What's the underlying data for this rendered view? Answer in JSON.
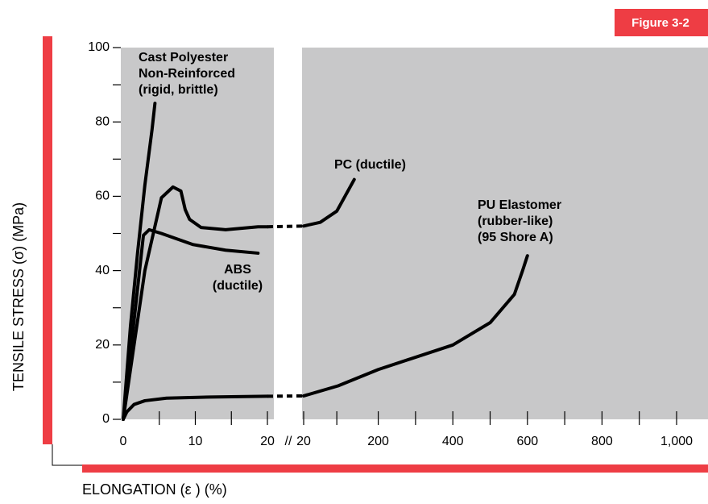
{
  "chart_data": {
    "type": "line",
    "figure_label": "Figure 3-2",
    "ylabel": "TENSILE STRESS (σ) (MPa)",
    "xlabel": "ELONGATION (ε ) (%)",
    "break_label": "//",
    "ylim": [
      0,
      100
    ],
    "yticks": [
      0,
      20,
      40,
      60,
      80,
      100
    ],
    "yminor": [
      10,
      30,
      50,
      70,
      90
    ],
    "panels": [
      {
        "xlim": [
          0,
          20
        ],
        "xticks": [
          0,
          10,
          20
        ],
        "xminor": [
          5,
          15
        ]
      },
      {
        "xticks": [
          20,
          200,
          400,
          600,
          800,
          {
            "value": 1000,
            "label": "1,000"
          }
        ],
        "xminor": [
          100,
          300,
          500,
          700,
          900
        ]
      }
    ],
    "color": "#000000",
    "series": [
      {
        "label": [
          "Cast Polyester",
          "Non-Reinforced",
          "(rigid, brittle)"
        ],
        "parts": [
          {
            "x": [
              0,
              1,
              2,
              3,
              4,
              4.4
            ],
            "values": [
              0,
              25,
              45,
              63,
              78,
              85
            ]
          }
        ]
      },
      {
        "label": [
          "PC (ductile)"
        ],
        "parts": [
          {
            "x": [
              0,
              3,
              5.3,
              6.9,
              8,
              8.6,
              9.2,
              10.8,
              14.2,
              18.7,
              20
            ],
            "values": [
              0,
              40,
              59.6,
              62.5,
              61.4,
              56.4,
              53.8,
              51.6,
              51,
              51.8,
              51.8
            ]
          },
          {
            "x": [
              20,
              60,
              100,
              142
            ],
            "values": [
              52,
              53,
              56,
              64.5
            ]
          }
        ]
      },
      {
        "label": [
          "ABS",
          "(ductile)"
        ],
        "parts": [
          {
            "x": [
              0,
              2.8,
              3.6,
              5.3,
              9.7,
              14.2,
              18.7
            ],
            "values": [
              0,
              49.5,
              51,
              50,
              47,
              45.5,
              44.7
            ]
          }
        ]
      },
      {
        "label": [
          "PU Elastomer",
          "(rubber-like)",
          "(95 Shore A)"
        ],
        "parts": [
          {
            "x": [
              0,
              0.5,
              1.5,
              3,
              6,
              12,
              20
            ],
            "values": [
              0,
              2,
              4,
              5,
              5.7,
              6,
              6.2
            ]
          },
          {
            "x": [
              20,
              103,
              200,
              400,
              500,
              565,
              587,
              600
            ],
            "values": [
              6.3,
              9,
              13.4,
              20,
              26,
              33.6,
              40,
              44
            ]
          }
        ]
      }
    ]
  }
}
